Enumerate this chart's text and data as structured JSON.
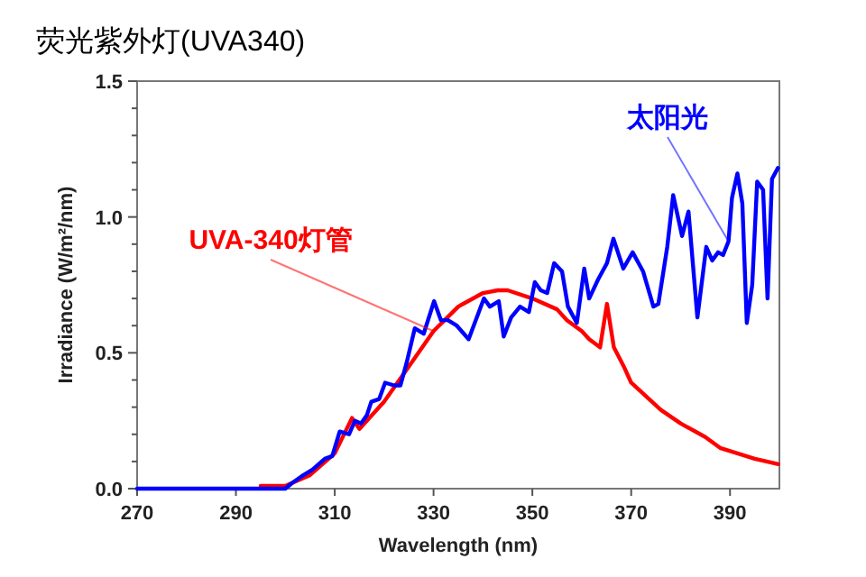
{
  "chart_data": {
    "type": "line",
    "title": "荧光紫外灯(UVA340)",
    "xlabel": "Wavelength (nm)",
    "ylabel": "Irradiance (W/m²/nm)",
    "xlim": [
      270,
      400
    ],
    "xticks": [
      270,
      290,
      310,
      330,
      350,
      370,
      390
    ],
    "ylim": [
      0,
      1.5
    ],
    "yticks": [
      {
        "value": 0,
        "label": "0.0"
      },
      {
        "value": 0.1,
        "label": null
      },
      {
        "value": 0.2,
        "label": null
      },
      {
        "value": 0.3,
        "label": null
      },
      {
        "value": 0.4,
        "label": null
      },
      {
        "value": 0.5,
        "label": "0.5"
      },
      {
        "value": 0.6,
        "label": null
      },
      {
        "value": 0.7,
        "label": null
      },
      {
        "value": 0.8,
        "label": null
      },
      {
        "value": 0.9,
        "label": null
      },
      {
        "value": 1,
        "label": "1.0"
      },
      {
        "value": 1.1,
        "label": null
      },
      {
        "value": 1.2,
        "label": null
      },
      {
        "value": 1.3,
        "label": null
      },
      {
        "value": 1.4,
        "label": null
      },
      {
        "value": 1.5,
        "label": "1.5"
      }
    ],
    "grid": false,
    "marker": "none",
    "line_style": "solid",
    "series": [
      {
        "name": "UVA-340灯管",
        "color": "#ff0000",
        "x": [
          295,
          300,
          305,
          310,
          313.5,
          315,
          320,
          325,
          330,
          335,
          340,
          343,
          345,
          350,
          355,
          357,
          360,
          361.5,
          363.7,
          365.1,
          366.5,
          368.5,
          370,
          376,
          380,
          385,
          388,
          395,
          399.8
        ],
        "values": [
          0.01,
          0.01,
          0.05,
          0.13,
          0.26,
          0.22,
          0.32,
          0.45,
          0.58,
          0.67,
          0.72,
          0.73,
          0.73,
          0.7,
          0.66,
          0.62,
          0.58,
          0.55,
          0.52,
          0.68,
          0.52,
          0.45,
          0.39,
          0.29,
          0.24,
          0.19,
          0.15,
          0.11,
          0.09
        ]
      },
      {
        "name": "太阳光",
        "color": "#0000ff",
        "x": [
          270,
          300,
          301.3,
          303.7,
          305.5,
          308,
          309.5,
          311,
          312.9,
          314.1,
          315.3,
          316.5,
          317.4,
          319,
          320.2,
          322,
          323.3,
          324.5,
          326.2,
          328,
          330.1,
          331.5,
          332.9,
          334.7,
          337.1,
          340.2,
          341.4,
          343.2,
          344.2,
          345.7,
          347.5,
          349.3,
          350.5,
          351.7,
          353,
          354.4,
          356,
          357.2,
          359,
          360.5,
          361.5,
          363.3,
          365.1,
          366.4,
          368.4,
          370.3,
          372.4,
          374.5,
          375.5,
          377.3,
          378.5,
          380.3,
          381.6,
          383.4,
          385.2,
          386.4,
          387.6,
          388.6,
          389.7,
          390.4,
          391.5,
          392.5,
          393.4,
          394.5,
          395.5,
          396.7,
          397.6,
          398.5,
          399.7
        ],
        "values": [
          0,
          0,
          0.02,
          0.05,
          0.07,
          0.11,
          0.12,
          0.21,
          0.2,
          0.25,
          0.24,
          0.27,
          0.32,
          0.33,
          0.39,
          0.38,
          0.38,
          0.46,
          0.59,
          0.57,
          0.69,
          0.62,
          0.62,
          0.6,
          0.55,
          0.7,
          0.67,
          0.69,
          0.56,
          0.63,
          0.67,
          0.65,
          0.76,
          0.73,
          0.72,
          0.83,
          0.8,
          0.67,
          0.61,
          0.81,
          0.7,
          0.77,
          0.83,
          0.92,
          0.81,
          0.87,
          0.8,
          0.67,
          0.68,
          0.89,
          1.08,
          0.93,
          1.02,
          0.63,
          0.89,
          0.84,
          0.87,
          0.86,
          0.91,
          1.07,
          1.16,
          1.05,
          0.61,
          0.75,
          1.13,
          1.1,
          0.7,
          1.14,
          1.18
        ]
      }
    ]
  }
}
